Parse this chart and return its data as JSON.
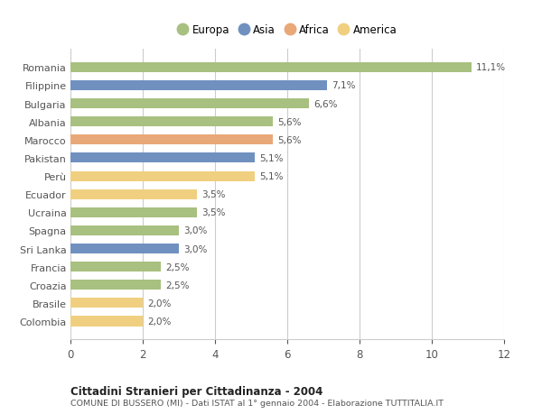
{
  "categories": [
    "Romania",
    "Filippine",
    "Bulgaria",
    "Albania",
    "Marocco",
    "Pakistan",
    "Perù",
    "Ecuador",
    "Ucraina",
    "Spagna",
    "Sri Lanka",
    "Francia",
    "Croazia",
    "Brasile",
    "Colombia"
  ],
  "values": [
    11.1,
    7.1,
    6.6,
    5.6,
    5.6,
    5.1,
    5.1,
    3.5,
    3.5,
    3.0,
    3.0,
    2.5,
    2.5,
    2.0,
    2.0
  ],
  "labels": [
    "11,1%",
    "7,1%",
    "6,6%",
    "5,6%",
    "5,6%",
    "5,1%",
    "5,1%",
    "3,5%",
    "3,5%",
    "3,0%",
    "3,0%",
    "2,5%",
    "2,5%",
    "2,0%",
    "2,0%"
  ],
  "colors": [
    "#a8c080",
    "#7090c0",
    "#a8c080",
    "#a8c080",
    "#e8a878",
    "#7090c0",
    "#f0d080",
    "#f0d080",
    "#a8c080",
    "#a8c080",
    "#7090c0",
    "#a8c080",
    "#a8c080",
    "#f0d080",
    "#f0d080"
  ],
  "legend_labels": [
    "Europa",
    "Asia",
    "Africa",
    "America"
  ],
  "legend_colors": [
    "#a8c080",
    "#7090c0",
    "#e8a878",
    "#f0d080"
  ],
  "xlim": [
    0,
    12
  ],
  "xticks": [
    0,
    2,
    4,
    6,
    8,
    10,
    12
  ],
  "title": "Cittadini Stranieri per Cittadinanza - 2004",
  "subtitle": "COMUNE DI BUSSERO (MI) - Dati ISTAT al 1° gennaio 2004 - Elaborazione TUTTITALIA.IT",
  "background_color": "#ffffff",
  "grid_color": "#cccccc",
  "bar_height": 0.55
}
